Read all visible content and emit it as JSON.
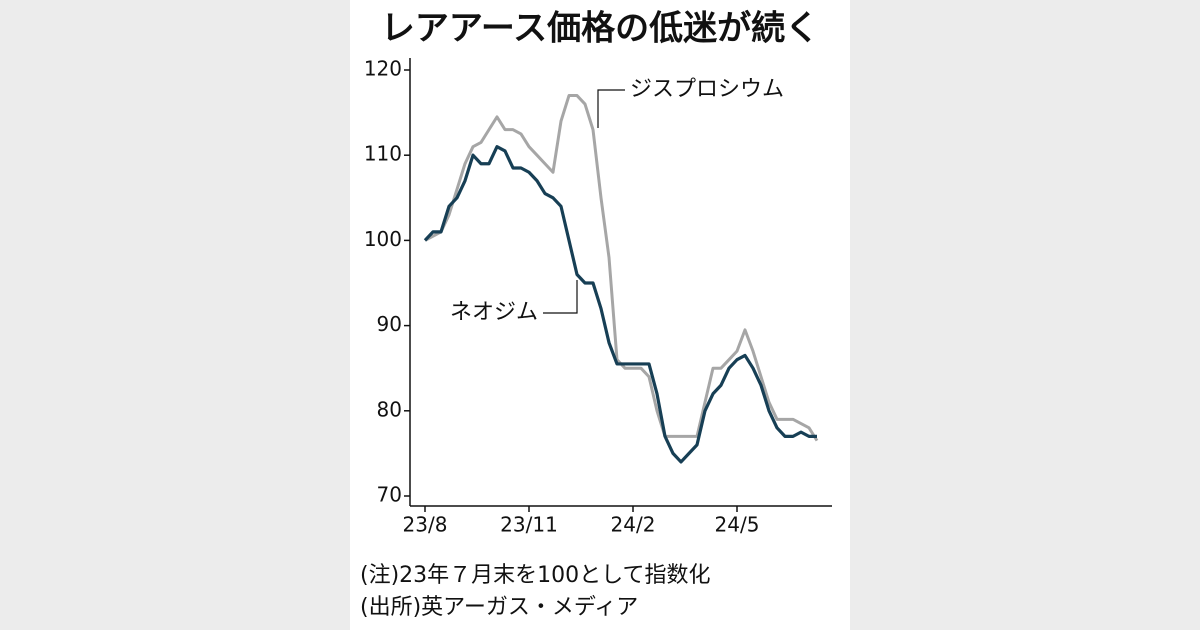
{
  "chart_data": {
    "type": "line",
    "title": "レアアース価格の低迷が続く",
    "categories": [
      "23/8",
      null,
      null,
      null,
      null,
      null,
      null,
      null,
      null,
      null,
      null,
      null,
      null,
      "23/11",
      null,
      null,
      null,
      null,
      null,
      null,
      null,
      null,
      null,
      null,
      null,
      null,
      "24/2",
      null,
      null,
      null,
      null,
      null,
      null,
      null,
      null,
      null,
      null,
      null,
      null,
      "24/5",
      null,
      null,
      null,
      null,
      null,
      null,
      null,
      null,
      null,
      null
    ],
    "series": [
      {
        "name": "ジスプロシウム",
        "color": "#a6a6a6",
        "values": [
          100,
          100.5,
          101,
          103,
          106,
          109,
          111,
          111.5,
          113,
          114.5,
          113,
          113,
          112.5,
          111,
          110,
          109,
          108,
          114,
          117,
          117,
          116,
          113,
          105,
          98,
          86,
          85,
          85,
          85,
          84,
          80,
          77,
          77,
          77,
          77,
          77,
          81,
          85,
          85,
          86,
          87,
          89.5,
          87,
          84,
          81,
          79,
          79,
          79,
          78.5,
          78,
          76.5
        ]
      },
      {
        "name": "ネオジム",
        "color": "#173f55",
        "values": [
          100,
          101,
          101,
          104,
          105,
          107,
          110,
          109,
          109,
          111,
          110.5,
          108.5,
          108.5,
          108,
          107,
          105.5,
          105,
          104,
          100,
          96,
          95,
          95,
          92,
          88,
          85.5,
          85.5,
          85.5,
          85.5,
          85.5,
          82,
          77,
          75,
          74,
          75,
          76,
          80,
          82,
          83,
          85,
          86,
          86.5,
          85,
          83,
          80,
          78,
          77,
          77,
          77.5,
          77,
          77
        ]
      }
    ],
    "ylim": [
      70,
      120
    ],
    "yticks": [
      70,
      80,
      90,
      100,
      110,
      120
    ],
    "grid": false,
    "notes": [
      "(注)23年７月末を100として指数化",
      "(出所)英アーガス・メディア"
    ]
  }
}
